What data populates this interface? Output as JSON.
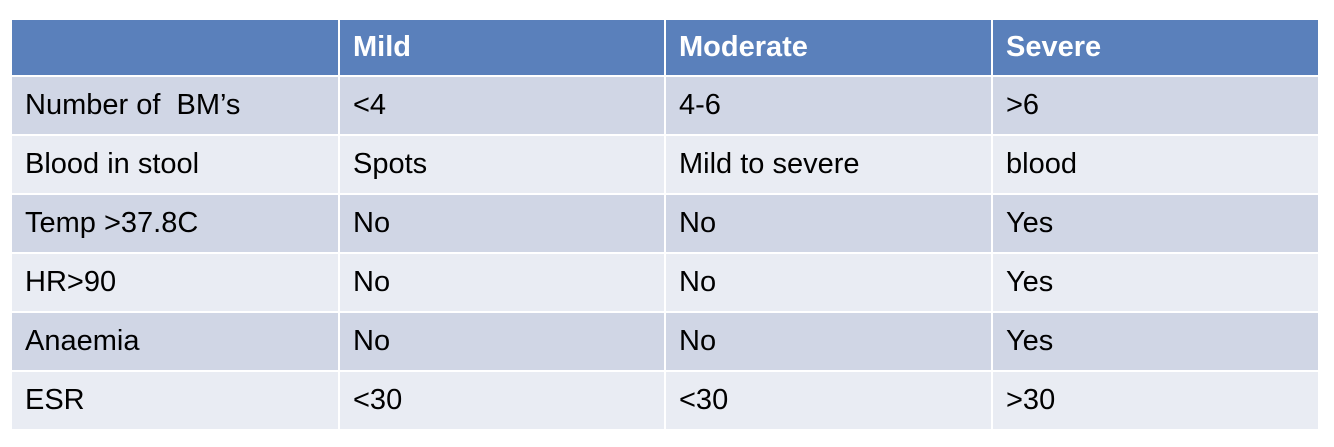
{
  "table": {
    "header": [
      "Mild",
      "Moderate",
      "Severe"
    ],
    "rows": [
      [
        "Number of  BM’s",
        "<4",
        "4-6",
        ">6"
      ],
      [
        "Blood in stool",
        "Spots",
        "Mild to severe",
        "blood"
      ],
      [
        "Temp >37.8C",
        "No",
        "No",
        "Yes"
      ],
      [
        "HR>90",
        "No",
        "No",
        "Yes"
      ],
      [
        "Anaemia",
        "No",
        "No",
        "Yes"
      ],
      [
        "ESR",
        "<30",
        "<30",
        ">30"
      ]
    ]
  }
}
